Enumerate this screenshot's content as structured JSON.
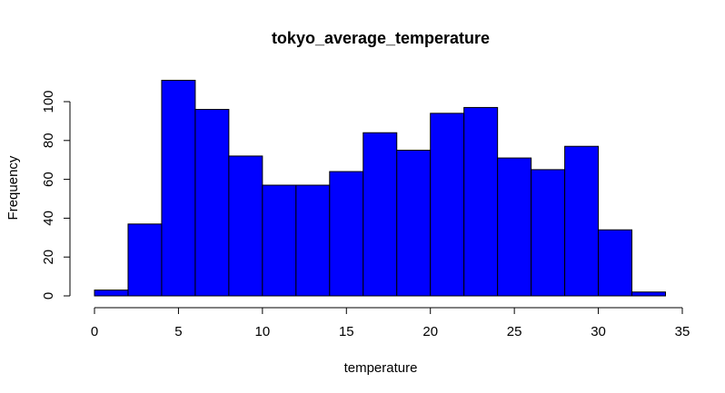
{
  "chart_data": {
    "type": "bar",
    "title": "tokyo_average_temperature",
    "xlabel": "temperature",
    "ylabel": "Frequency",
    "bin_edges": [
      0,
      2,
      4,
      6,
      8,
      10,
      12,
      14,
      16,
      18,
      20,
      22,
      24,
      26,
      28,
      30,
      32,
      34
    ],
    "values": [
      3,
      37,
      111,
      96,
      72,
      57,
      57,
      64,
      84,
      75,
      94,
      97,
      71,
      65,
      77,
      34,
      2
    ],
    "xlim": [
      0,
      35
    ],
    "ylim": [
      0,
      111
    ],
    "x_ticks": [
      0,
      5,
      10,
      15,
      20,
      25,
      30,
      35
    ],
    "y_ticks": [
      0,
      20,
      40,
      60,
      80,
      100
    ],
    "bar_color": "#0000ff",
    "grid": false
  }
}
